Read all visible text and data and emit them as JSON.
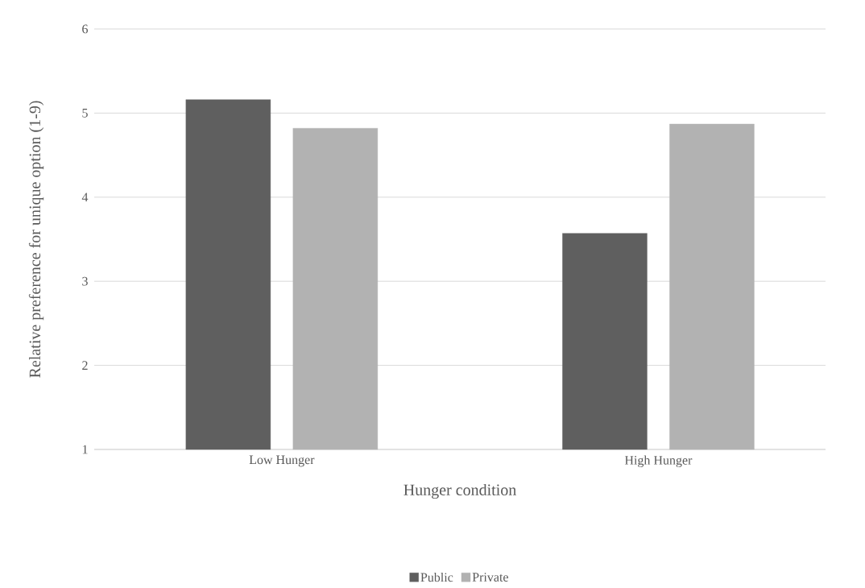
{
  "chart_data": {
    "type": "bar",
    "xlabel": "Hunger condition",
    "ylabel": "Relative preference for unique option (1-9)",
    "categories": [
      "Low Hunger",
      "High Hunger"
    ],
    "series": [
      {
        "name": "Public",
        "color": "#5f5f5f",
        "values": [
          5.16,
          3.57
        ]
      },
      {
        "name": "Private",
        "color": "#b2b2b2",
        "values": [
          4.82,
          4.87
        ]
      }
    ],
    "ylim": [
      1,
      6
    ],
    "yticks": [
      1,
      2,
      3,
      4,
      5,
      6
    ],
    "grid": "y",
    "legend": "bottom"
  }
}
